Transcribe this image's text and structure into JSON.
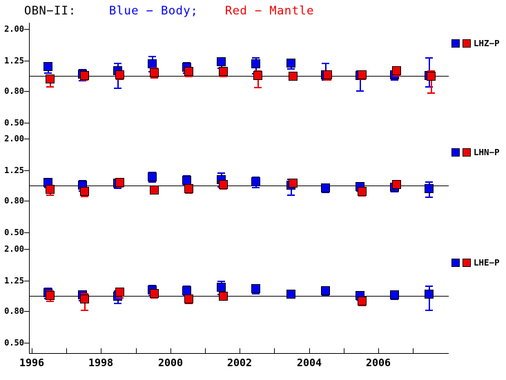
{
  "title": {
    "station": "OBN−II:",
    "blue_label": "Blue − Body;",
    "red_label": "Red − Mantle"
  },
  "colors": {
    "blue": "#0000ee",
    "red": "#ee0000",
    "axis": "#000000",
    "background": "#ffffff"
  },
  "y_axis": {
    "scale": "log",
    "tick_labels": [
      "2.00",
      "1.25",
      "0.80",
      "0.50"
    ],
    "tick_values": [
      2.0,
      1.25,
      0.8,
      0.5
    ]
  },
  "x_axis": {
    "tick_years": [
      1996,
      1997,
      1998,
      1999,
      2000,
      2001,
      2002,
      2003,
      2004,
      2005,
      2006,
      2007
    ],
    "labeled_years": [
      1996,
      1998,
      2000,
      2002,
      2004,
      2006
    ],
    "tick_labels": [
      "1996",
      "1998",
      "2000",
      "2002",
      "2004",
      "2006"
    ]
  },
  "chart_data": [
    {
      "type": "scatter",
      "legend_label": "LHZ−P",
      "yscale": "log",
      "ylim": [
        0.5,
        2.0
      ],
      "ref_line": 1.0,
      "x": [
        1996.5,
        1997.5,
        1998.5,
        1999.5,
        2000.5,
        2001.5,
        2002.5,
        2003.5,
        2004.5,
        2005.5,
        2006.5,
        2007.5
      ],
      "series": [
        {
          "name": "Body",
          "color": "blue",
          "values": [
            1.14,
            1.02,
            1.07,
            1.19,
            1.13,
            1.23,
            1.19,
            1.2,
            1.01,
            1.0,
            1.01,
            1.0
          ],
          "err_lo": [
            1.04,
            0.93,
            0.83,
            1.06,
            1.04,
            1.12,
            1.03,
            1.11,
            0.94,
            0.8,
            0.94,
            0.85
          ],
          "err_hi": [
            1.22,
            1.1,
            1.2,
            1.33,
            1.21,
            1.31,
            1.31,
            1.28,
            1.2,
            1.08,
            1.08,
            1.3
          ]
        },
        {
          "name": "Mantle",
          "color": "red",
          "values": [
            0.95,
            1.0,
            1.01,
            1.04,
            1.06,
            1.06,
            1.0,
            0.99,
            1.01,
            1.01,
            1.07,
            0.99
          ],
          "err_lo": [
            0.85,
            0.94,
            0.95,
            0.97,
            0.99,
            0.99,
            0.84,
            0.95,
            0.94,
            0.95,
            1.0,
            0.77
          ],
          "err_hi": [
            1.01,
            1.06,
            1.07,
            1.12,
            1.12,
            1.12,
            1.08,
            1.04,
            1.07,
            1.07,
            1.14,
            1.08
          ]
        }
      ]
    },
    {
      "type": "scatter",
      "legend_label": "LHN−P",
      "yscale": "log",
      "ylim": [
        0.5,
        2.0
      ],
      "ref_line": 1.0,
      "x": [
        1996.5,
        1997.5,
        1998.5,
        1999.5,
        2000.5,
        2001.5,
        2002.5,
        2003.5,
        2004.5,
        2005.5,
        2006.5,
        2007.5
      ],
      "series": [
        {
          "name": "Body",
          "color": "blue",
          "values": [
            1.04,
            1.0,
            1.03,
            1.13,
            1.08,
            1.09,
            1.05,
            1.0,
            0.96,
            0.98,
            0.97,
            0.95
          ],
          "err_lo": [
            0.97,
            0.92,
            0.96,
            1.05,
            1.0,
            0.98,
            0.97,
            0.87,
            0.9,
            0.92,
            0.91,
            0.84
          ],
          "err_hi": [
            1.1,
            1.07,
            1.1,
            1.21,
            1.16,
            1.2,
            1.13,
            1.1,
            1.02,
            1.04,
            1.03,
            1.05
          ]
        },
        {
          "name": "Mantle",
          "color": "red",
          "values": [
            0.94,
            0.91,
            1.04,
            0.93,
            0.95,
            1.01,
            null,
            1.03,
            null,
            0.91,
            1.01,
            null
          ],
          "err_lo": [
            0.87,
            0.85,
            0.98,
            0.88,
            0.89,
            0.95,
            null,
            0.98,
            null,
            0.86,
            0.96,
            null
          ],
          "err_hi": [
            1.0,
            0.97,
            1.11,
            0.99,
            1.01,
            1.07,
            null,
            1.09,
            null,
            0.97,
            1.07,
            null
          ]
        }
      ]
    },
    {
      "type": "scatter",
      "legend_label": "LHE−P",
      "yscale": "log",
      "ylim": [
        0.5,
        2.0
      ],
      "ref_line": 1.0,
      "x": [
        1996.5,
        1997.5,
        1998.5,
        1999.5,
        2000.5,
        2001.5,
        2002.5,
        2003.5,
        2004.5,
        2005.5,
        2006.5,
        2007.5
      ],
      "series": [
        {
          "name": "Body",
          "color": "blue",
          "values": [
            1.04,
            1.01,
            0.99,
            1.09,
            1.07,
            1.13,
            1.11,
            1.02,
            1.07,
            1.0,
            1.01,
            1.02
          ],
          "err_lo": [
            0.96,
            0.93,
            0.89,
            1.0,
            1.0,
            1.02,
            1.03,
            0.97,
            1.01,
            0.94,
            0.95,
            0.81
          ],
          "err_hi": [
            1.12,
            1.08,
            1.08,
            1.17,
            1.15,
            1.24,
            1.18,
            1.08,
            1.14,
            1.06,
            1.07,
            1.15
          ]
        },
        {
          "name": "Mantle",
          "color": "red",
          "values": [
            1.0,
            0.95,
            1.05,
            1.03,
            0.95,
            0.99,
            null,
            null,
            null,
            0.92,
            null,
            null
          ],
          "err_lo": [
            0.92,
            0.81,
            0.97,
            0.97,
            0.89,
            0.94,
            null,
            null,
            null,
            0.87,
            null,
            null
          ],
          "err_hi": [
            1.08,
            1.03,
            1.12,
            1.1,
            1.01,
            1.05,
            null,
            null,
            null,
            0.98,
            null,
            null
          ]
        }
      ]
    }
  ]
}
